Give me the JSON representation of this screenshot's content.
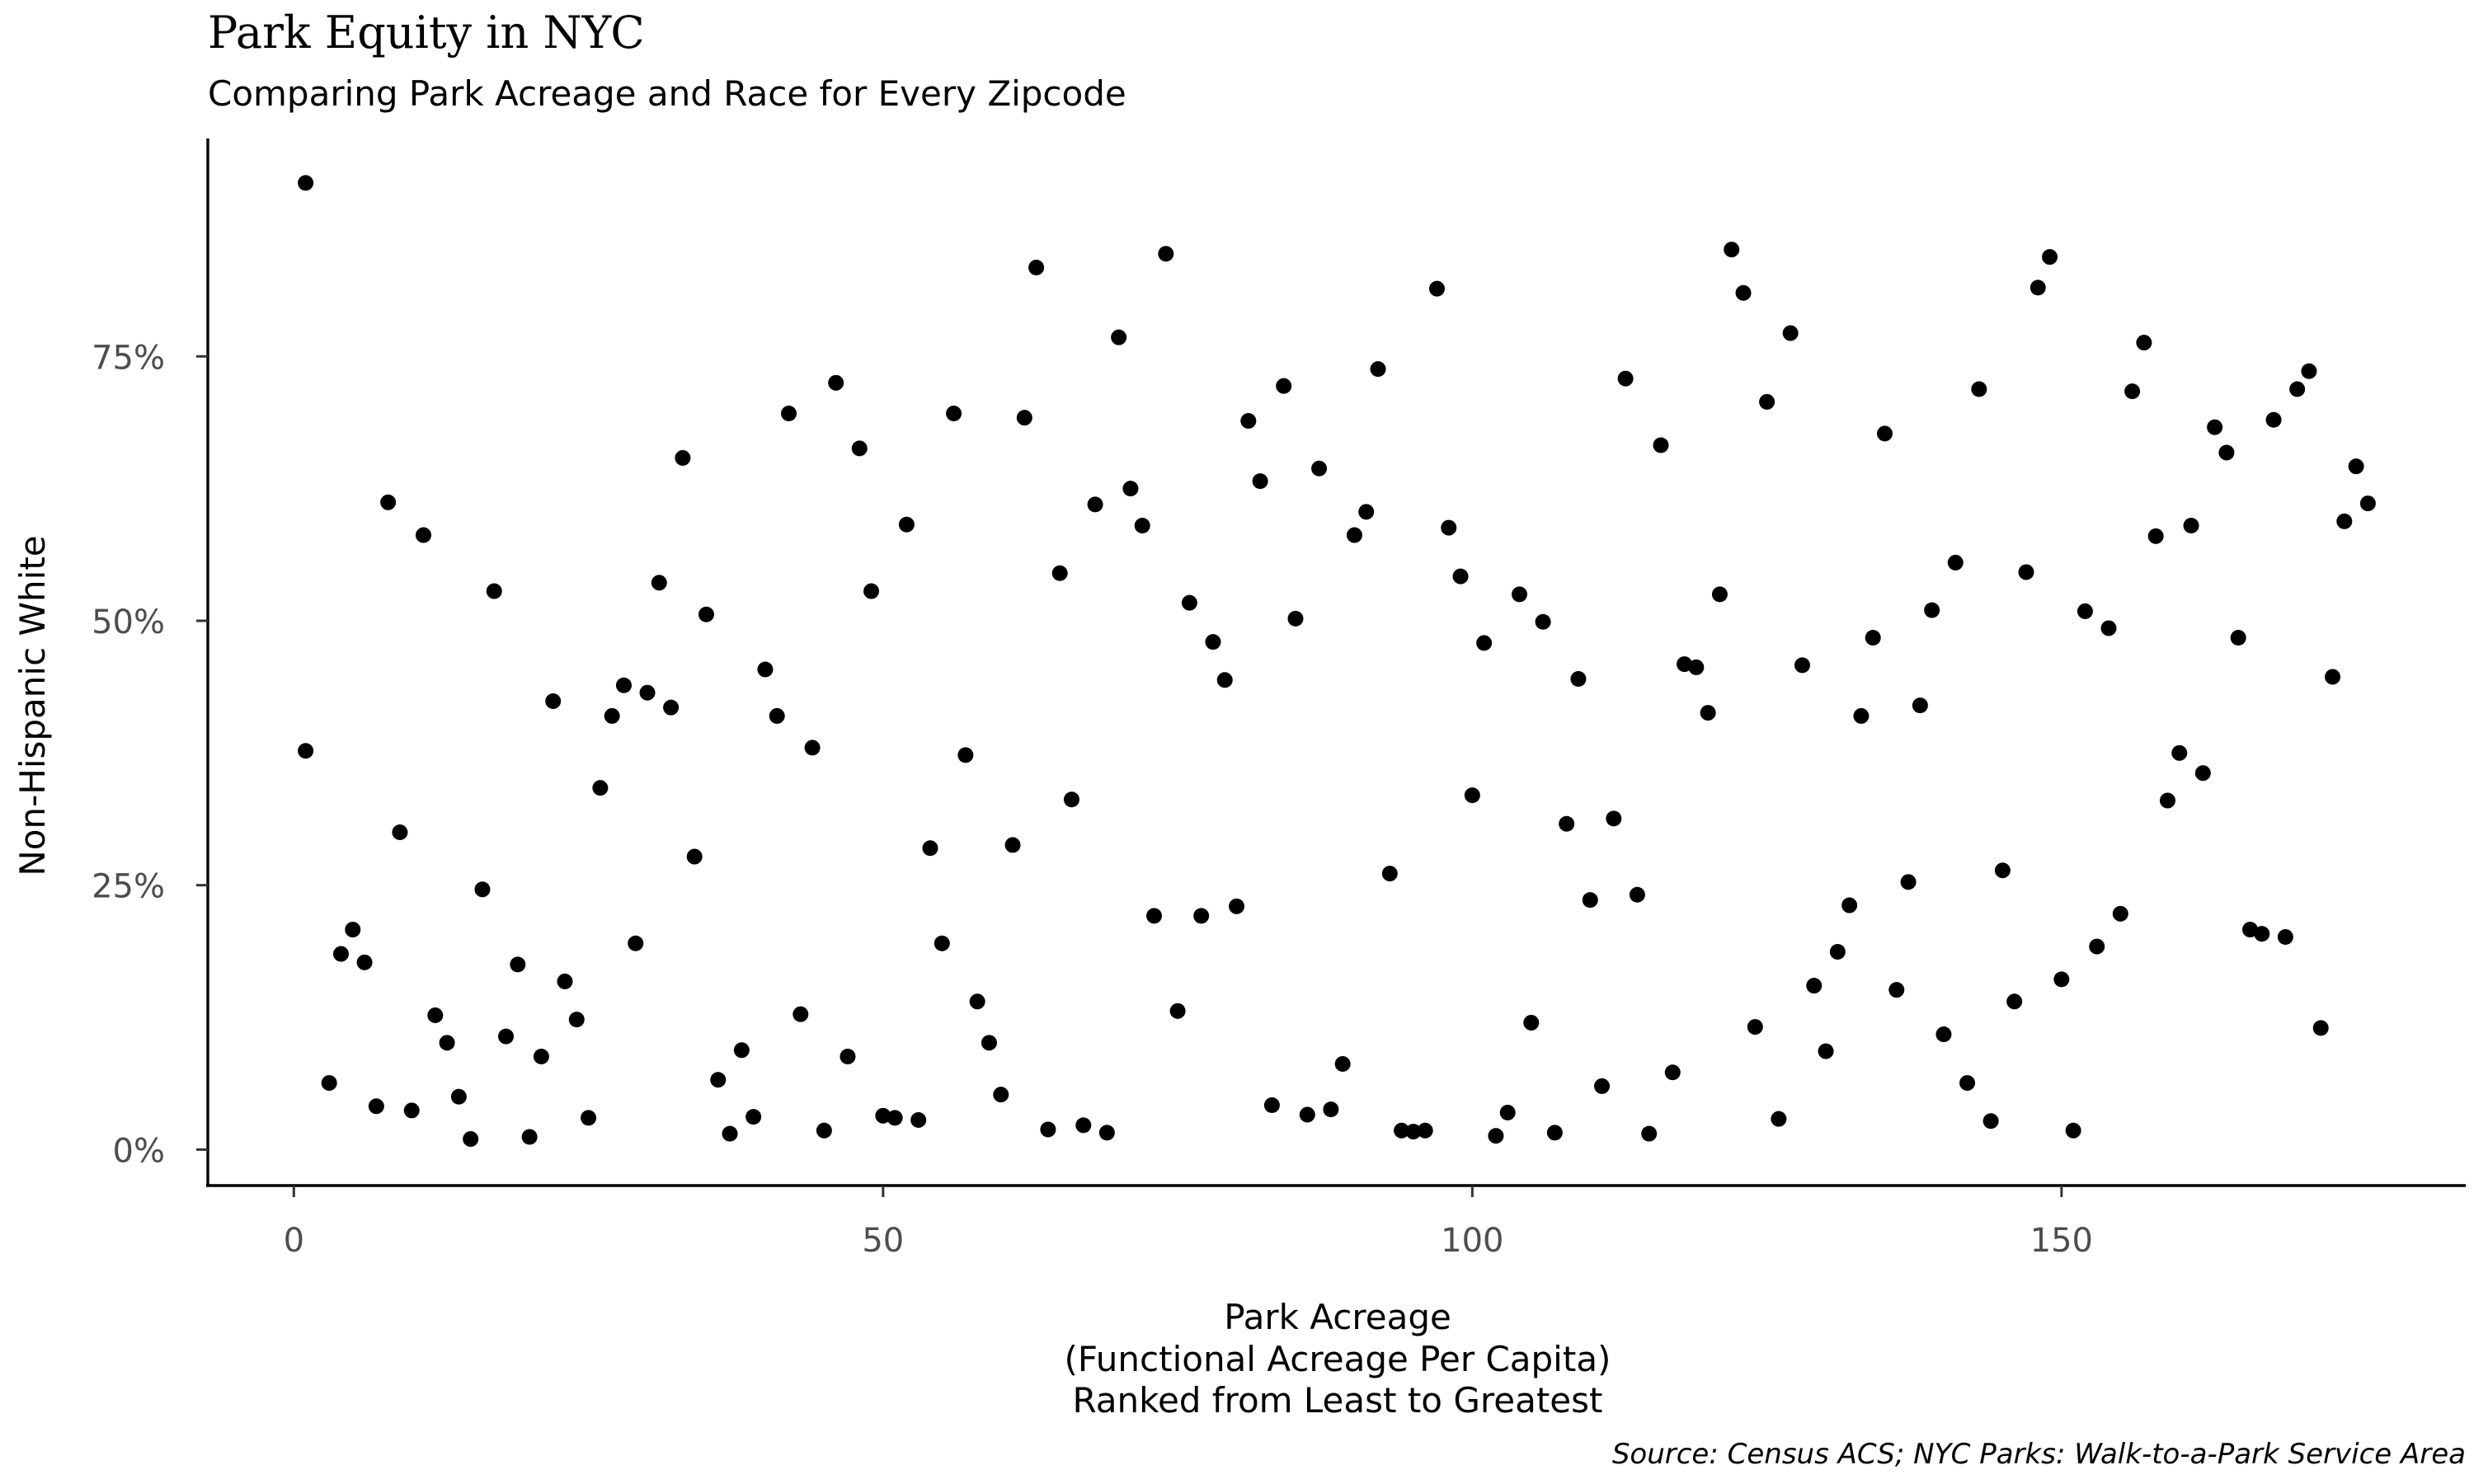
{
  "chart_data": {
    "type": "scatter",
    "title": "Park Equity in NYC",
    "subtitle": "Comparing Park Acreage and Race for Every Zipcode",
    "xlabel_lines": [
      "Park Acreage",
      "(Functional Acreage Per Capita)",
      "Ranked from Least to Greatest"
    ],
    "ylabel": "Non-Hispanic White",
    "caption": "Source: Census ACS; NYC Parks: Walk-to-a-Park Service Area",
    "xlim": [
      -7.3,
      184.3
    ],
    "ylim": [
      -3.4,
      95.6
    ],
    "x_ticks": [
      0,
      50,
      100,
      150
    ],
    "x_tick_labels": [
      "0",
      "50",
      "100",
      "150"
    ],
    "y_ticks": [
      0,
      25,
      50,
      75
    ],
    "y_tick_labels": [
      "0%",
      "25%",
      "50%",
      "75%"
    ],
    "grid": false,
    "legend": "none",
    "point_color": "#000000",
    "points": [
      [
        1,
        91.4
      ],
      [
        1,
        37.7
      ],
      [
        3,
        6.3
      ],
      [
        4,
        18.5
      ],
      [
        5,
        20.8
      ],
      [
        6,
        17.7
      ],
      [
        7,
        4.1
      ],
      [
        8,
        61.2
      ],
      [
        9,
        30.0
      ],
      [
        10,
        3.7
      ],
      [
        11,
        58.1
      ],
      [
        12,
        12.7
      ],
      [
        13,
        10.1
      ],
      [
        14,
        5.0
      ],
      [
        15,
        1.0
      ],
      [
        16,
        24.6
      ],
      [
        17,
        52.8
      ],
      [
        18,
        10.7
      ],
      [
        19,
        17.5
      ],
      [
        20,
        1.2
      ],
      [
        21,
        8.8
      ],
      [
        22,
        42.4
      ],
      [
        23,
        15.9
      ],
      [
        24,
        12.3
      ],
      [
        25,
        3.0
      ],
      [
        26,
        34.2
      ],
      [
        27,
        41.0
      ],
      [
        28,
        43.9
      ],
      [
        29,
        19.5
      ],
      [
        30,
        43.2
      ],
      [
        31,
        53.6
      ],
      [
        32,
        41.8
      ],
      [
        33,
        65.4
      ],
      [
        34,
        27.7
      ],
      [
        35,
        50.6
      ],
      [
        36,
        6.6
      ],
      [
        37,
        1.5
      ],
      [
        38,
        9.4
      ],
      [
        39,
        3.1
      ],
      [
        40,
        45.4
      ],
      [
        41,
        41.0
      ],
      [
        42,
        69.6
      ],
      [
        43,
        12.8
      ],
      [
        44,
        38.0
      ],
      [
        45,
        1.8
      ],
      [
        46,
        72.5
      ],
      [
        47,
        8.8
      ],
      [
        48,
        66.3
      ],
      [
        49,
        52.8
      ],
      [
        50,
        3.2
      ],
      [
        51,
        3.0
      ],
      [
        52,
        59.1
      ],
      [
        53,
        2.8
      ],
      [
        54,
        28.5
      ],
      [
        55,
        19.5
      ],
      [
        56,
        69.6
      ],
      [
        57,
        37.3
      ],
      [
        58,
        14.0
      ],
      [
        59,
        10.1
      ],
      [
        60,
        5.2
      ],
      [
        61,
        28.8
      ],
      [
        62,
        69.2
      ],
      [
        63,
        83.4
      ],
      [
        64,
        1.9
      ],
      [
        65,
        54.5
      ],
      [
        66,
        33.1
      ],
      [
        67,
        2.3
      ],
      [
        68,
        61.0
      ],
      [
        69,
        1.6
      ],
      [
        70,
        76.8
      ],
      [
        71,
        62.5
      ],
      [
        72,
        59.0
      ],
      [
        73,
        22.1
      ],
      [
        74,
        84.7
      ],
      [
        75,
        13.1
      ],
      [
        76,
        51.7
      ],
      [
        77,
        22.1
      ],
      [
        78,
        48.0
      ],
      [
        79,
        44.4
      ],
      [
        80,
        23.0
      ],
      [
        81,
        68.9
      ],
      [
        82,
        63.2
      ],
      [
        83,
        4.2
      ],
      [
        84,
        72.2
      ],
      [
        85,
        50.2
      ],
      [
        86,
        3.3
      ],
      [
        87,
        64.4
      ],
      [
        88,
        3.8
      ],
      [
        89,
        8.1
      ],
      [
        90,
        58.1
      ],
      [
        91,
        60.3
      ],
      [
        92,
        73.8
      ],
      [
        93,
        26.1
      ],
      [
        94,
        1.8
      ],
      [
        95,
        1.7
      ],
      [
        96,
        1.8
      ],
      [
        97,
        81.4
      ],
      [
        98,
        58.8
      ],
      [
        99,
        54.2
      ],
      [
        100,
        33.5
      ],
      [
        101,
        47.9
      ],
      [
        102,
        1.3
      ],
      [
        103,
        3.5
      ],
      [
        104,
        52.5
      ],
      [
        105,
        12.0
      ],
      [
        106,
        49.9
      ],
      [
        107,
        1.6
      ],
      [
        108,
        30.8
      ],
      [
        109,
        44.5
      ],
      [
        110,
        23.6
      ],
      [
        111,
        6.0
      ],
      [
        112,
        31.3
      ],
      [
        113,
        72.9
      ],
      [
        114,
        24.1
      ],
      [
        115,
        1.5
      ],
      [
        116,
        66.6
      ],
      [
        117,
        7.3
      ],
      [
        118,
        45.9
      ],
      [
        119,
        45.6
      ],
      [
        120,
        41.3
      ],
      [
        121,
        52.5
      ],
      [
        122,
        85.1
      ],
      [
        123,
        81.0
      ],
      [
        124,
        11.6
      ],
      [
        125,
        70.7
      ],
      [
        126,
        2.9
      ],
      [
        127,
        77.2
      ],
      [
        128,
        45.8
      ],
      [
        129,
        15.5
      ],
      [
        130,
        9.3
      ],
      [
        131,
        18.7
      ],
      [
        132,
        23.1
      ],
      [
        133,
        41.0
      ],
      [
        134,
        48.4
      ],
      [
        135,
        67.7
      ],
      [
        136,
        15.1
      ],
      [
        137,
        25.3
      ],
      [
        138,
        42.0
      ],
      [
        139,
        51.0
      ],
      [
        140,
        10.9
      ],
      [
        141,
        55.5
      ],
      [
        142,
        6.3
      ],
      [
        143,
        71.9
      ],
      [
        144,
        2.7
      ],
      [
        145,
        26.4
      ],
      [
        146,
        14.0
      ],
      [
        147,
        54.6
      ],
      [
        148,
        81.5
      ],
      [
        149,
        84.4
      ],
      [
        150,
        16.1
      ],
      [
        151,
        1.8
      ],
      [
        152,
        50.9
      ],
      [
        153,
        19.2
      ],
      [
        154,
        49.3
      ],
      [
        155,
        22.3
      ],
      [
        156,
        71.7
      ],
      [
        157,
        76.3
      ],
      [
        158,
        58.0
      ],
      [
        159,
        33.0
      ],
      [
        160,
        37.5
      ],
      [
        161,
        59.0
      ],
      [
        162,
        35.6
      ],
      [
        163,
        68.3
      ],
      [
        164,
        65.9
      ],
      [
        165,
        48.4
      ],
      [
        166,
        20.8
      ],
      [
        167,
        20.4
      ],
      [
        168,
        69.0
      ],
      [
        169,
        20.1
      ],
      [
        170,
        71.9
      ],
      [
        171,
        73.6
      ],
      [
        172,
        11.5
      ],
      [
        173,
        44.7
      ],
      [
        174,
        59.4
      ],
      [
        175,
        64.6
      ],
      [
        176,
        61.1
      ]
    ]
  }
}
